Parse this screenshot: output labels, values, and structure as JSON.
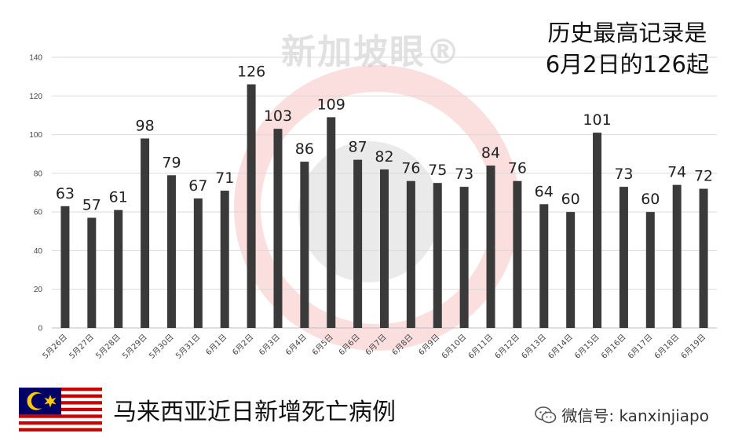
{
  "watermark": "新加坡眼®",
  "annotation": {
    "line1": "历史最高记录是",
    "line2": "6月2日的126起"
  },
  "footer": {
    "caption": "马来西亚近日新增死亡病例",
    "wechat_label": "微信号: kanxinjiapo"
  },
  "colors": {
    "bar": "#3a3a3a",
    "grid": "#d9d9d9",
    "watermark_circle": "#e53935"
  },
  "chart_data": {
    "type": "bar",
    "categories": [
      "5月26日",
      "5月27日",
      "5月28日",
      "5月29日",
      "5月30日",
      "5月31日",
      "6月1日",
      "6月2日",
      "6月3日",
      "6月4日",
      "6月5日",
      "6月6日",
      "6月7日",
      "6月8日",
      "6月9日",
      "6月10日",
      "6月11日",
      "6月12日",
      "6月13日",
      "6月14日",
      "6月15日",
      "6月16日",
      "6月17日",
      "6月18日",
      "6月19日"
    ],
    "values": [
      63,
      57,
      61,
      98,
      79,
      67,
      71,
      126,
      103,
      86,
      109,
      87,
      82,
      76,
      75,
      73,
      84,
      76,
      64,
      60,
      101,
      73,
      60,
      74,
      72
    ],
    "yticks": [
      0,
      20,
      40,
      60,
      80,
      100,
      120,
      140
    ],
    "ylim": [
      0,
      140
    ],
    "grid": true,
    "title": "",
    "xlabel": "",
    "ylabel": ""
  }
}
